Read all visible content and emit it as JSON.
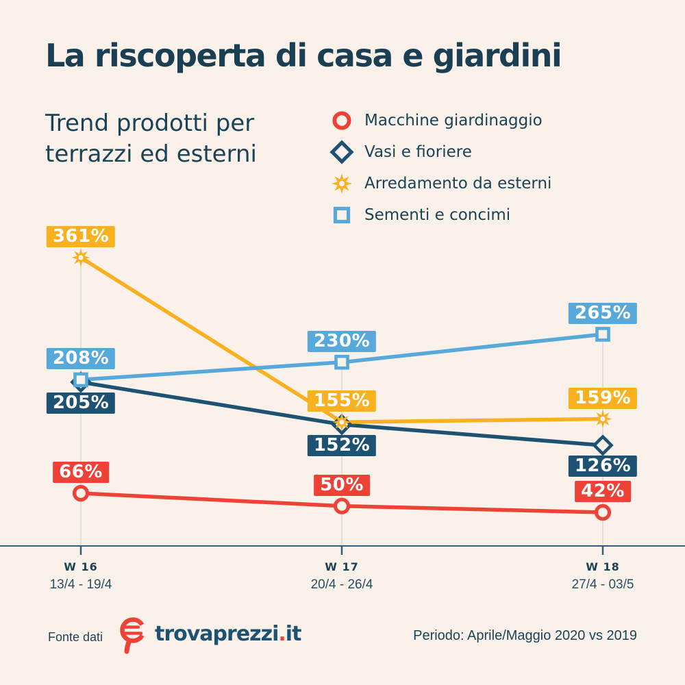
{
  "page": {
    "background": "#FAF1EA"
  },
  "header": {
    "title": "La riscoperta di casa e giardini",
    "subtitle": "Trend prodotti per terrazzi ed esterni"
  },
  "legend": {
    "items": [
      {
        "label": "Macchine giardinaggio",
        "marker": "circle",
        "color": "#EF4237"
      },
      {
        "label": "Vasi e fioriere",
        "marker": "diamond",
        "color": "#1E5272"
      },
      {
        "label": "Arredamento da esterni",
        "marker": "star",
        "color": "#F9B021"
      },
      {
        "label": "Sementi e concimi",
        "marker": "square",
        "color": "#56A9DA"
      }
    ]
  },
  "chart_data": {
    "type": "line",
    "title": "Trend prodotti per terrazzi ed esterni",
    "categories": [
      "W 16",
      "W 17",
      "W 18"
    ],
    "category_dates": [
      "13/4 - 19/4",
      "20/4 - 26/4",
      "27/4 - 03/5"
    ],
    "series": [
      {
        "name": "Macchine giardinaggio",
        "marker": "circle",
        "color": "#EF4237",
        "values": [
          66,
          50,
          42
        ],
        "label_position": "above"
      },
      {
        "name": "Vasi e fioriere",
        "marker": "diamond",
        "color": "#1E5272",
        "values": [
          205,
          152,
          126
        ],
        "label_position": "below"
      },
      {
        "name": "Arredamento da esterni",
        "marker": "star",
        "color": "#F9B021",
        "values": [
          361,
          155,
          159
        ],
        "label_position": "above"
      },
      {
        "name": "Sementi e concimi",
        "marker": "square",
        "color": "#56A9DA",
        "values": [
          208,
          230,
          265
        ],
        "label_position": "above"
      }
    ],
    "value_suffix": "%",
    "ylim": [
      0,
      420
    ],
    "grid": "vertical",
    "legend_position": "top-right",
    "axis_color": "#2E5F7C",
    "grid_color": "#E5DFDA"
  },
  "footer": {
    "source_label": "Fonte dati",
    "logo": {
      "name": "trovaprezzi",
      "dot": ".",
      "tld": "it"
    },
    "period": "Periodo: Aprile/Maggio 2020 vs 2019"
  }
}
